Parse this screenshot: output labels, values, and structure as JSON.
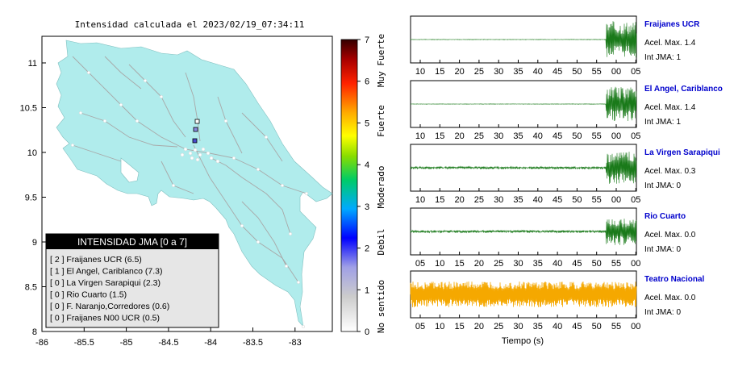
{
  "map": {
    "title": "Intensidad calculada el 2023/02/19_07:34:11",
    "x_ticks": [
      "-86",
      "-85.5",
      "-85",
      "-84.5",
      "-84",
      "-83.5",
      "-83"
    ],
    "y_ticks": [
      "11",
      "10.5",
      "10",
      "9.5",
      "9",
      "8.5",
      "8"
    ],
    "colors": {
      "land": "#b0ecec",
      "roads": "#aaaaaa",
      "sea": "#ffffff"
    }
  },
  "colorbar": {
    "ticks": [
      "7",
      "6",
      "5",
      "4",
      "3",
      "2",
      "1",
      "0"
    ],
    "labels": [
      "Muy Fuerte",
      "Fuerte",
      "Moderado",
      "Debil",
      "No sentido"
    ]
  },
  "legend": {
    "title": "INTENSIDAD JMA [0 a 7]",
    "entries": [
      "[ 2 ]  Fraijanes UCR (6.5)",
      "[ 1 ]  El Angel, Cariblanco (7.3)",
      "[ 0 ]  La Virgen Sarapiqui (2.3)",
      "[ 0 ]  Rio Cuarto (1.5)",
      "[ 0 ]  F. Naranjo,Corredores (0.6)",
      "[ 0 ]  Fraijanes N00 UCR (0.5)"
    ]
  },
  "stations": [
    {
      "name": "Fraijanes UCR",
      "acel": "Acel. Max. 1.4",
      "jma": "Int JMA: 1",
      "color": "#1a7a1a",
      "signal": 0.95,
      "ticks": [
        "10",
        "15",
        "20",
        "25",
        "30",
        "35",
        "40",
        "45",
        "50",
        "55",
        "00",
        "05"
      ]
    },
    {
      "name": "El Angel, Cariblanco",
      "acel": "Acel. Max. 1.4",
      "jma": "Int JMA: 1",
      "color": "#1a7a1a",
      "signal": 0.9,
      "ticks": [
        "10",
        "15",
        "20",
        "25",
        "30",
        "35",
        "40",
        "45",
        "50",
        "55",
        "00",
        "05"
      ]
    },
    {
      "name": "La Virgen Sarapiqui",
      "acel": "Acel. Max. 0.3",
      "jma": "Int JMA: 0",
      "color": "#1a7a1a",
      "signal": 0.85,
      "ticks": [
        "10",
        "15",
        "20",
        "25",
        "30",
        "35",
        "40",
        "45",
        "50",
        "55",
        "00",
        "05"
      ]
    },
    {
      "name": "Rio Cuarto",
      "acel": "Acel. Max. 0.0",
      "jma": "Int JMA: 0",
      "color": "#1a7a1a",
      "signal": 0.7,
      "ticks": [
        "05",
        "10",
        "15",
        "20",
        "25",
        "30",
        "35",
        "40",
        "45",
        "50",
        "55",
        "00"
      ]
    },
    {
      "name": "Teatro Nacional",
      "acel": "Acel. Max. 0.0",
      "jma": "Int JMA: 0",
      "color": "#f5a800",
      "signal": 1.0,
      "ticks": [
        "05",
        "10",
        "15",
        "20",
        "25",
        "30",
        "35",
        "40",
        "45",
        "50",
        "55",
        "00"
      ]
    }
  ],
  "xlabel": "Tiempo (s)"
}
